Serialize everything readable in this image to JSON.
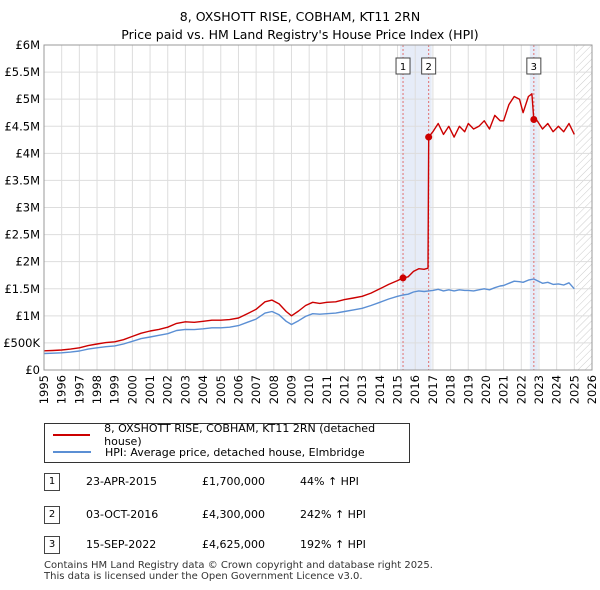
{
  "chart_data": {
    "type": "line",
    "title": "8, OXSHOTT RISE, COBHAM, KT11 2RN",
    "subtitle": "Price paid vs. HM Land Registry's House Price Index (HPI)",
    "xlim": [
      1995,
      2026
    ],
    "ylim": [
      0,
      6000000
    ],
    "x_ticks": [
      1995,
      1996,
      1997,
      1998,
      1999,
      2000,
      2001,
      2002,
      2003,
      2004,
      2005,
      2006,
      2007,
      2008,
      2009,
      2010,
      2011,
      2012,
      2013,
      2014,
      2015,
      2016,
      2017,
      2018,
      2019,
      2020,
      2021,
      2022,
      2023,
      2024,
      2025,
      2026
    ],
    "y_ticks": [
      {
        "value": 0,
        "label": "£0"
      },
      {
        "value": 500000,
        "label": "£500K"
      },
      {
        "value": 1000000,
        "label": "£1M"
      },
      {
        "value": 1500000,
        "label": "£1.5M"
      },
      {
        "value": 2000000,
        "label": "£2M"
      },
      {
        "value": 2500000,
        "label": "£2.5M"
      },
      {
        "value": 3000000,
        "label": "£3M"
      },
      {
        "value": 3500000,
        "label": "£3.5M"
      },
      {
        "value": 4000000,
        "label": "£4M"
      },
      {
        "value": 4500000,
        "label": "£4.5M"
      },
      {
        "value": 5000000,
        "label": "£5M"
      },
      {
        "value": 5500000,
        "label": "£5.5M"
      },
      {
        "value": 6000000,
        "label": "£6M"
      }
    ],
    "future_shade_from": 2025.1,
    "series": [
      {
        "name": "8, OXSHOTT RISE, COBHAM, KT11 2RN (detached house)",
        "color": "#cc0000",
        "points": [
          [
            1995.0,
            355000
          ],
          [
            1995.5,
            360000
          ],
          [
            1996.0,
            370000
          ],
          [
            1996.5,
            385000
          ],
          [
            1997.0,
            410000
          ],
          [
            1997.5,
            450000
          ],
          [
            1998.0,
            480000
          ],
          [
            1998.5,
            505000
          ],
          [
            1999.0,
            520000
          ],
          [
            1999.5,
            560000
          ],
          [
            2000.0,
            620000
          ],
          [
            2000.5,
            680000
          ],
          [
            2001.0,
            720000
          ],
          [
            2001.5,
            750000
          ],
          [
            2002.0,
            790000
          ],
          [
            2002.5,
            860000
          ],
          [
            2003.0,
            890000
          ],
          [
            2003.5,
            880000
          ],
          [
            2004.0,
            900000
          ],
          [
            2004.5,
            920000
          ],
          [
            2005.0,
            920000
          ],
          [
            2005.5,
            930000
          ],
          [
            2006.0,
            960000
          ],
          [
            2006.5,
            1040000
          ],
          [
            2007.0,
            1120000
          ],
          [
            2007.5,
            1260000
          ],
          [
            2007.9,
            1290000
          ],
          [
            2008.3,
            1220000
          ],
          [
            2008.7,
            1080000
          ],
          [
            2009.0,
            1000000
          ],
          [
            2009.4,
            1090000
          ],
          [
            2009.8,
            1190000
          ],
          [
            2010.2,
            1250000
          ],
          [
            2010.6,
            1230000
          ],
          [
            2011.0,
            1250000
          ],
          [
            2011.5,
            1260000
          ],
          [
            2012.0,
            1300000
          ],
          [
            2012.5,
            1330000
          ],
          [
            2013.0,
            1360000
          ],
          [
            2013.5,
            1420000
          ],
          [
            2014.0,
            1500000
          ],
          [
            2014.5,
            1580000
          ],
          [
            2015.0,
            1650000
          ],
          [
            2015.31,
            1700000
          ],
          [
            2015.6,
            1720000
          ],
          [
            2015.9,
            1820000
          ],
          [
            2016.2,
            1870000
          ],
          [
            2016.5,
            1860000
          ],
          [
            2016.72,
            1880000
          ],
          [
            2016.76,
            4300000
          ],
          [
            2017.0,
            4400000
          ],
          [
            2017.3,
            4550000
          ],
          [
            2017.6,
            4350000
          ],
          [
            2017.9,
            4500000
          ],
          [
            2018.2,
            4300000
          ],
          [
            2018.5,
            4500000
          ],
          [
            2018.8,
            4400000
          ],
          [
            2019.0,
            4550000
          ],
          [
            2019.3,
            4450000
          ],
          [
            2019.6,
            4500000
          ],
          [
            2019.9,
            4600000
          ],
          [
            2020.2,
            4450000
          ],
          [
            2020.5,
            4700000
          ],
          [
            2020.8,
            4600000
          ],
          [
            2021.0,
            4600000
          ],
          [
            2021.3,
            4900000
          ],
          [
            2021.6,
            5050000
          ],
          [
            2021.9,
            5000000
          ],
          [
            2022.1,
            4750000
          ],
          [
            2022.4,
            5050000
          ],
          [
            2022.6,
            5100000
          ],
          [
            2022.71,
            4625000
          ],
          [
            2022.9,
            4600000
          ],
          [
            2023.2,
            4450000
          ],
          [
            2023.5,
            4550000
          ],
          [
            2023.8,
            4400000
          ],
          [
            2024.1,
            4500000
          ],
          [
            2024.4,
            4400000
          ],
          [
            2024.7,
            4550000
          ],
          [
            2025.0,
            4350000
          ]
        ]
      },
      {
        "name": "HPI: Average price, detached house, Elmbridge",
        "color": "#5b8fd4",
        "points": [
          [
            1995.0,
            305000
          ],
          [
            1995.5,
            310000
          ],
          [
            1996.0,
            318000
          ],
          [
            1996.5,
            330000
          ],
          [
            1997.0,
            350000
          ],
          [
            1997.5,
            385000
          ],
          [
            1998.0,
            410000
          ],
          [
            1998.5,
            430000
          ],
          [
            1999.0,
            445000
          ],
          [
            1999.5,
            480000
          ],
          [
            2000.0,
            530000
          ],
          [
            2000.5,
            580000
          ],
          [
            2001.0,
            610000
          ],
          [
            2001.5,
            640000
          ],
          [
            2002.0,
            670000
          ],
          [
            2002.5,
            730000
          ],
          [
            2003.0,
            750000
          ],
          [
            2003.5,
            745000
          ],
          [
            2004.0,
            760000
          ],
          [
            2004.5,
            780000
          ],
          [
            2005.0,
            780000
          ],
          [
            2005.5,
            790000
          ],
          [
            2006.0,
            820000
          ],
          [
            2006.5,
            880000
          ],
          [
            2007.0,
            940000
          ],
          [
            2007.5,
            1050000
          ],
          [
            2007.9,
            1080000
          ],
          [
            2008.3,
            1020000
          ],
          [
            2008.7,
            900000
          ],
          [
            2009.0,
            840000
          ],
          [
            2009.4,
            910000
          ],
          [
            2009.8,
            990000
          ],
          [
            2010.2,
            1040000
          ],
          [
            2010.6,
            1030000
          ],
          [
            2011.0,
            1040000
          ],
          [
            2011.5,
            1050000
          ],
          [
            2012.0,
            1080000
          ],
          [
            2012.5,
            1110000
          ],
          [
            2013.0,
            1140000
          ],
          [
            2013.5,
            1190000
          ],
          [
            2014.0,
            1250000
          ],
          [
            2014.5,
            1310000
          ],
          [
            2015.0,
            1360000
          ],
          [
            2015.31,
            1385000
          ],
          [
            2015.6,
            1400000
          ],
          [
            2015.9,
            1440000
          ],
          [
            2016.2,
            1460000
          ],
          [
            2016.5,
            1450000
          ],
          [
            2016.76,
            1460000
          ],
          [
            2017.0,
            1470000
          ],
          [
            2017.3,
            1490000
          ],
          [
            2017.6,
            1460000
          ],
          [
            2017.9,
            1480000
          ],
          [
            2018.2,
            1460000
          ],
          [
            2018.5,
            1480000
          ],
          [
            2018.8,
            1470000
          ],
          [
            2019.0,
            1470000
          ],
          [
            2019.3,
            1460000
          ],
          [
            2019.6,
            1480000
          ],
          [
            2019.9,
            1500000
          ],
          [
            2020.2,
            1480000
          ],
          [
            2020.5,
            1520000
          ],
          [
            2020.8,
            1550000
          ],
          [
            2021.0,
            1560000
          ],
          [
            2021.3,
            1600000
          ],
          [
            2021.6,
            1640000
          ],
          [
            2021.9,
            1630000
          ],
          [
            2022.1,
            1620000
          ],
          [
            2022.4,
            1660000
          ],
          [
            2022.71,
            1680000
          ],
          [
            2022.9,
            1650000
          ],
          [
            2023.2,
            1600000
          ],
          [
            2023.5,
            1620000
          ],
          [
            2023.8,
            1580000
          ],
          [
            2024.1,
            1590000
          ],
          [
            2024.4,
            1570000
          ],
          [
            2024.7,
            1610000
          ],
          [
            2025.0,
            1500000
          ]
        ]
      }
    ],
    "transactions": [
      {
        "label": "1",
        "date": "23-APR-2015",
        "x": 2015.31,
        "price_value": 1700000,
        "price": "£1,700,000",
        "hpi": "44% ↑ HPI"
      },
      {
        "label": "2",
        "date": "03-OCT-2016",
        "x": 2016.76,
        "price_value": 4300000,
        "price": "£4,300,000",
        "hpi": "242% ↑ HPI"
      },
      {
        "label": "3",
        "date": "15-SEP-2022",
        "x": 2022.71,
        "price_value": 4625000,
        "price": "£4,625,000",
        "hpi": "192% ↑ HPI"
      }
    ]
  },
  "colors": {
    "property": "#cc0000",
    "hpi": "#5b8fd4",
    "grid": "#dddddd",
    "highlight": "#e6ecf8",
    "marker_line": "#e07070"
  },
  "legend": {
    "property_label": "8, OXSHOTT RISE, COBHAM, KT11 2RN (detached house)",
    "hpi_label": "HPI: Average price, detached house, Elmbridge"
  },
  "footer": {
    "line1": "Contains HM Land Registry data © Crown copyright and database right 2025.",
    "line2": "This data is licensed under the Open Government Licence v3.0."
  }
}
